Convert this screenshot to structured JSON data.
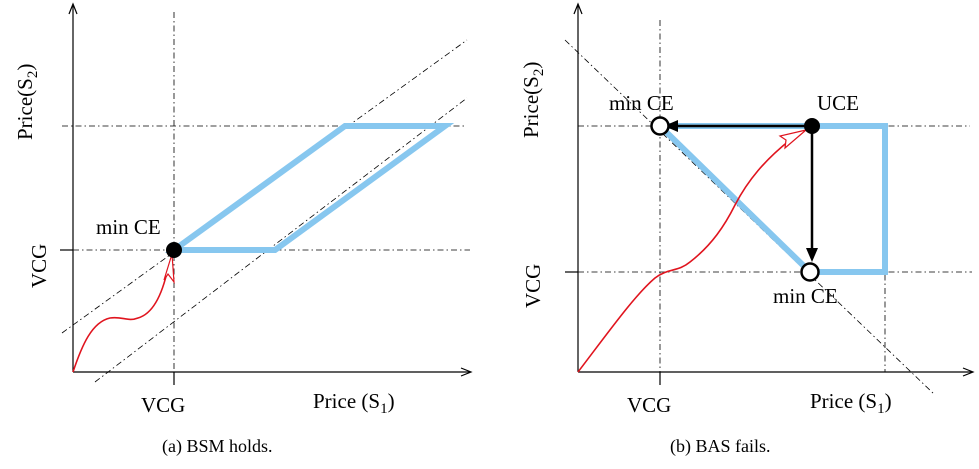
{
  "panel_a": {
    "y_axis_label": "Price(S",
    "y_axis_sub": "2",
    "y_axis_close": ")",
    "x_axis_label": "Price (S",
    "x_axis_sub": "1",
    "x_axis_close": ")",
    "x_tick": "VCG",
    "y_tick": "VCG",
    "point_label": "min CE",
    "caption": "(a) BSM holds."
  },
  "panel_b": {
    "y_axis_label": "Price(S",
    "y_axis_sub": "2",
    "y_axis_close": ")",
    "x_axis_label": "Price (S",
    "x_axis_sub": "1",
    "x_axis_close": ")",
    "x_tick": "VCG",
    "y_tick": "VCG",
    "point_label_top": "min CE",
    "point_label_uce": "UCE",
    "point_label_bottom": "min CE",
    "caption": "(b) BAS fails."
  },
  "colors": {
    "region": "#87c7ef",
    "path": "#e0141e",
    "axis": "#000000"
  }
}
